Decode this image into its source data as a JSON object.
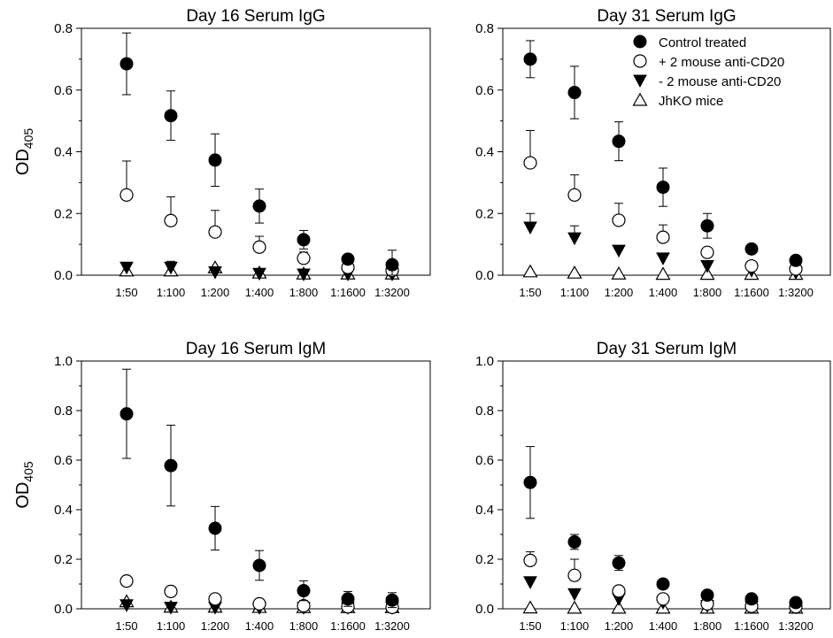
{
  "chart_data": [
    {
      "type": "scatter",
      "title": "Day 16 Serum IgG",
      "ylabel": "OD",
      "ylabel_sub": "405",
      "xlabel": "",
      "ylim": [
        0,
        0.8
      ],
      "yticks": [
        "0.0",
        "0.2",
        "0.4",
        "0.6",
        "0.8"
      ],
      "categories": [
        "1:50",
        "1:100",
        "1:200",
        "1:400",
        "1:800",
        "1:1600",
        "1:3200"
      ],
      "series": [
        {
          "name": "Control treated",
          "marker": "filled-circle",
          "values": [
            0.685,
            0.517,
            0.373,
            0.224,
            0.115,
            0.052,
            0.034
          ],
          "errors": [
            0.1,
            0.08,
            0.085,
            0.055,
            0.03,
            0.01,
            0.047
          ]
        },
        {
          "name": "+ 2 mouse anti-CD20",
          "marker": "open-circle",
          "values": [
            0.26,
            0.177,
            0.14,
            0.091,
            0.055,
            0.025,
            0.015
          ],
          "errors": [
            0.11,
            0.077,
            0.07,
            0.035,
            0.02,
            0.005,
            0.005
          ]
        },
        {
          "name": "-  2 mouse anti-CD20",
          "marker": "filled-triangle-down",
          "values": [
            0.025,
            0.025,
            0.01,
            0.005,
            0.003,
            0.003,
            0.003
          ],
          "errors": [
            0.005,
            0.02,
            0.015,
            0.005,
            0.003,
            0.003,
            0.003
          ]
        },
        {
          "name": "JhKO mice",
          "marker": "open-triangle-up",
          "values": [
            0.015,
            0.015,
            0.025,
            0.008,
            0.005,
            0.005,
            0.005
          ],
          "errors": [
            0.005,
            0.005,
            0.01,
            0.005,
            0.003,
            0.003,
            0.003
          ]
        }
      ]
    },
    {
      "type": "scatter",
      "title": "Day 31 Serum IgG",
      "ylabel": "",
      "xlabel": "",
      "ylim": [
        0,
        0.8
      ],
      "yticks": [
        "0.0",
        "0.2",
        "0.4",
        "0.6",
        "0.8"
      ],
      "categories": [
        "1:50",
        "1:100",
        "1:200",
        "1:400",
        "1:800",
        "1:1600",
        "1:3200"
      ],
      "legend": "top-right",
      "series": [
        {
          "name": "Control treated",
          "marker": "filled-circle",
          "values": [
            0.7,
            0.592,
            0.434,
            0.285,
            0.16,
            0.085,
            0.048
          ],
          "errors": [
            0.06,
            0.085,
            0.063,
            0.062,
            0.04,
            0.01,
            0.005
          ]
        },
        {
          "name": "+ 2 mouse anti-CD20",
          "marker": "open-circle",
          "values": [
            0.364,
            0.26,
            0.178,
            0.123,
            0.074,
            0.03,
            0.02
          ],
          "errors": [
            0.105,
            0.065,
            0.055,
            0.04,
            0.01,
            0.01,
            0.005
          ]
        },
        {
          "name": "-  2 mouse anti-CD20",
          "marker": "filled-triangle-down",
          "values": [
            0.155,
            0.12,
            0.08,
            0.055,
            0.03,
            0.015,
            0.008
          ],
          "errors": [
            0.045,
            0.04,
            0.015,
            0.01,
            0.005,
            0.005,
            0.003
          ]
        },
        {
          "name": "JhKO mice",
          "marker": "open-triangle-up",
          "values": [
            0.012,
            0.008,
            0.005,
            0.004,
            0.004,
            0.004,
            0.004
          ],
          "errors": [
            0.003,
            0.003,
            0.003,
            0.003,
            0.003,
            0.003,
            0.003
          ]
        }
      ]
    },
    {
      "type": "scatter",
      "title": "Day 16 Serum IgM",
      "ylabel": "OD",
      "ylabel_sub": "405",
      "xlabel": "",
      "ylim": [
        0,
        1.0
      ],
      "yticks": [
        "0.0",
        "0.2",
        "0.4",
        "0.6",
        "0.8",
        "1.0"
      ],
      "categories": [
        "1:50",
        "1:100",
        "1:200",
        "1:400",
        "1:800",
        "1:1600",
        "1:3200"
      ],
      "series": [
        {
          "name": "Control treated",
          "marker": "filled-circle",
          "values": [
            0.787,
            0.578,
            0.325,
            0.175,
            0.073,
            0.04,
            0.035
          ],
          "errors": [
            0.18,
            0.163,
            0.088,
            0.06,
            0.04,
            0.03,
            0.03
          ]
        },
        {
          "name": "+ 2 mouse anti-CD20",
          "marker": "open-circle",
          "values": [
            0.112,
            0.07,
            0.04,
            0.02,
            0.012,
            0.008,
            0.006
          ],
          "errors": [
            0.005,
            0.005,
            0.005,
            0.005,
            0.003,
            0.003,
            0.003
          ]
        },
        {
          "name": "-  2 mouse anti-CD20",
          "marker": "filled-triangle-down",
          "values": [
            0.015,
            0.005,
            0.005,
            0.004,
            0.004,
            0.004,
            0.004
          ],
          "errors": [
            0.01,
            0.003,
            0.003,
            0.003,
            0.003,
            0.003,
            0.003
          ]
        },
        {
          "name": "JhKO mice",
          "marker": "open-triangle-up",
          "values": [
            0.03,
            0.008,
            0.008,
            0.007,
            0.006,
            0.006,
            0.006
          ],
          "errors": [
            0.005,
            0.003,
            0.003,
            0.003,
            0.003,
            0.003,
            0.003
          ]
        }
      ]
    },
    {
      "type": "scatter",
      "title": "Day 31 Serum IgM",
      "ylabel": "",
      "xlabel": "",
      "ylim": [
        0,
        1.0
      ],
      "yticks": [
        "0.0",
        "0.2",
        "0.4",
        "0.6",
        "0.8",
        "1.0"
      ],
      "categories": [
        "1:50",
        "1:100",
        "1:200",
        "1:400",
        "1:800",
        "1:1600",
        "1:3200"
      ],
      "series": [
        {
          "name": "Control treated",
          "marker": "filled-circle",
          "values": [
            0.51,
            0.27,
            0.185,
            0.1,
            0.055,
            0.04,
            0.025
          ],
          "errors": [
            0.145,
            0.03,
            0.03,
            0.01,
            0.005,
            0.005,
            0.005
          ]
        },
        {
          "name": "+ 2 mouse anti-CD20",
          "marker": "open-circle",
          "values": [
            0.195,
            0.135,
            0.072,
            0.04,
            0.02,
            0.01,
            0.008
          ],
          "errors": [
            0.035,
            0.065,
            0.015,
            0.01,
            0.005,
            0.003,
            0.003
          ]
        },
        {
          "name": "-  2 mouse anti-CD20",
          "marker": "filled-triangle-down",
          "values": [
            0.108,
            0.06,
            0.04,
            0.025,
            0.012,
            0.008,
            0.006
          ],
          "errors": [
            0.02,
            0.02,
            0.01,
            0.008,
            0.005,
            0.003,
            0.003
          ]
        },
        {
          "name": "JhKO mice",
          "marker": "open-triangle-up",
          "values": [
            0.005,
            0.004,
            0.004,
            0.004,
            0.004,
            0.004,
            0.004
          ],
          "errors": [
            0.003,
            0.003,
            0.003,
            0.003,
            0.003,
            0.003,
            0.003
          ]
        }
      ]
    }
  ]
}
